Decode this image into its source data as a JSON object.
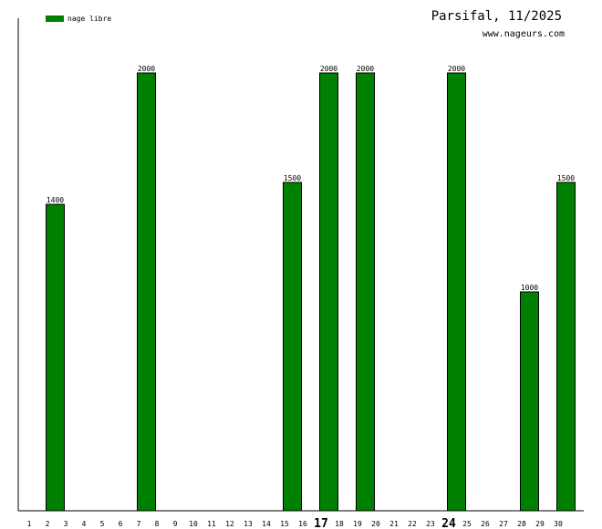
{
  "chart_data": {
    "type": "bar",
    "title": "Parsifal, 11/2025",
    "subtitle": "www.nageurs.com",
    "legend_position": "top-left",
    "grid": false,
    "ylim": [
      0,
      2250
    ],
    "categories": [
      "1",
      "2",
      "3",
      "4",
      "5",
      "6",
      "7",
      "8",
      "9",
      "10",
      "11",
      "12",
      "13",
      "14",
      "15",
      "16",
      "17",
      "18",
      "19",
      "20",
      "21",
      "22",
      "23",
      "24",
      "25",
      "26",
      "27",
      "28",
      "29",
      "30"
    ],
    "emphasized_categories": [
      "17",
      "24"
    ],
    "series": [
      {
        "name": "nage libre",
        "color": "#008000",
        "values": [
          0,
          1400,
          0,
          0,
          0,
          0,
          2000,
          0,
          0,
          0,
          0,
          0,
          0,
          0,
          1500,
          0,
          2000,
          0,
          2000,
          0,
          0,
          0,
          0,
          2000,
          0,
          0,
          0,
          1000,
          0,
          1500
        ]
      }
    ]
  }
}
